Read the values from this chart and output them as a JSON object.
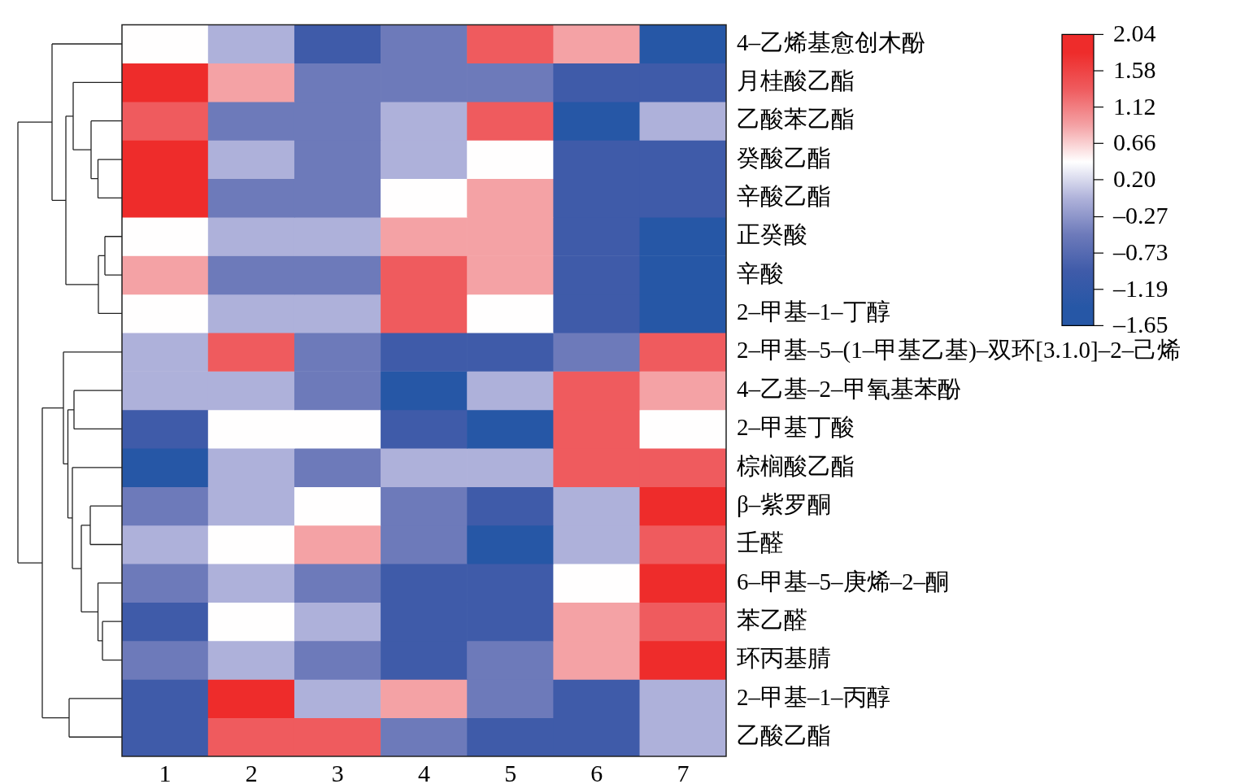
{
  "chart_data": {
    "type": "heatmap",
    "categories": [
      "1",
      "2",
      "3",
      "4",
      "5",
      "6",
      "7"
    ],
    "y_categories": [
      "4–乙烯基愈创木酚",
      "月桂酸乙酯",
      "乙酸苯乙酯",
      "癸酸乙酯",
      "辛酸乙酯",
      "正癸酸",
      "辛酸",
      "2–甲基–1–丁醇",
      "2–甲基–5–(1–甲基乙基)–双环[3.1.0]–2–己烯",
      "4–乙基–2–甲氧基苯酚",
      "2–甲基丁酸",
      "棕榈酸乙酯",
      "β–紫罗酮",
      "壬醛",
      "6–甲基–5–庚烯–2–酮",
      "苯乙醛",
      "环丙基腈",
      "2–甲基–1–丙醇",
      "乙酸乙酯"
    ],
    "cells": [
      [
        0.43,
        -0.04,
        -0.96,
        -0.5,
        1.35,
        0.89,
        -1.42
      ],
      [
        1.81,
        0.89,
        -0.5,
        -0.5,
        -0.5,
        -0.96,
        -0.96
      ],
      [
        1.35,
        -0.5,
        -0.5,
        -0.04,
        1.35,
        -1.42,
        -0.04
      ],
      [
        1.81,
        -0.04,
        -0.5,
        -0.04,
        0.43,
        -0.96,
        -0.96
      ],
      [
        1.81,
        -0.5,
        -0.5,
        0.43,
        0.89,
        -0.96,
        -0.96
      ],
      [
        0.43,
        -0.04,
        -0.04,
        0.89,
        0.89,
        -0.96,
        -1.42
      ],
      [
        0.89,
        -0.5,
        -0.5,
        1.35,
        0.89,
        -0.96,
        -1.42
      ],
      [
        0.43,
        -0.04,
        -0.04,
        1.35,
        0.43,
        -0.96,
        -1.42
      ],
      [
        -0.04,
        1.35,
        -0.5,
        -0.96,
        -0.96,
        -0.5,
        1.35
      ],
      [
        -0.04,
        -0.04,
        -0.5,
        -1.42,
        -0.04,
        1.35,
        0.89
      ],
      [
        -0.96,
        0.43,
        0.43,
        -0.96,
        -1.42,
        1.35,
        0.43
      ],
      [
        -1.42,
        -0.04,
        -0.5,
        -0.04,
        -0.04,
        1.35,
        1.35
      ],
      [
        -0.5,
        -0.04,
        0.43,
        -0.5,
        -0.96,
        -0.04,
        1.81
      ],
      [
        -0.04,
        0.43,
        0.89,
        -0.5,
        -1.42,
        -0.04,
        1.35
      ],
      [
        -0.5,
        -0.04,
        -0.5,
        -0.96,
        -0.96,
        0.43,
        1.81
      ],
      [
        -0.96,
        0.43,
        -0.04,
        -0.96,
        -0.96,
        0.89,
        1.35
      ],
      [
        -0.5,
        -0.04,
        -0.5,
        -0.96,
        -0.5,
        0.89,
        1.81
      ],
      [
        -0.96,
        1.81,
        -0.04,
        0.89,
        -0.5,
        -0.96,
        -0.04
      ],
      [
        -0.96,
        1.35,
        1.35,
        -0.5,
        -0.96,
        -0.96,
        -0.04
      ]
    ],
    "clim": [
      -1.65,
      2.04
    ],
    "cticks": [
      {
        "value": -1.65,
        "label": "–1.65"
      },
      {
        "value": -1.19,
        "label": "–1.19"
      },
      {
        "value": -0.73,
        "label": "–0.73"
      },
      {
        "value": -0.27,
        "label": "–0.27"
      },
      {
        "value": 0.2,
        "label": "0.20"
      },
      0.66,
      1.12,
      1.58,
      2.04
    ],
    "colors": [
      "#2657a6",
      "#3f5ba9",
      "#6d7aba",
      "#afb2da",
      "#ffffff",
      "#f4a2a5",
      "#ef5b5e",
      "#ee2c2b"
    ]
  }
}
